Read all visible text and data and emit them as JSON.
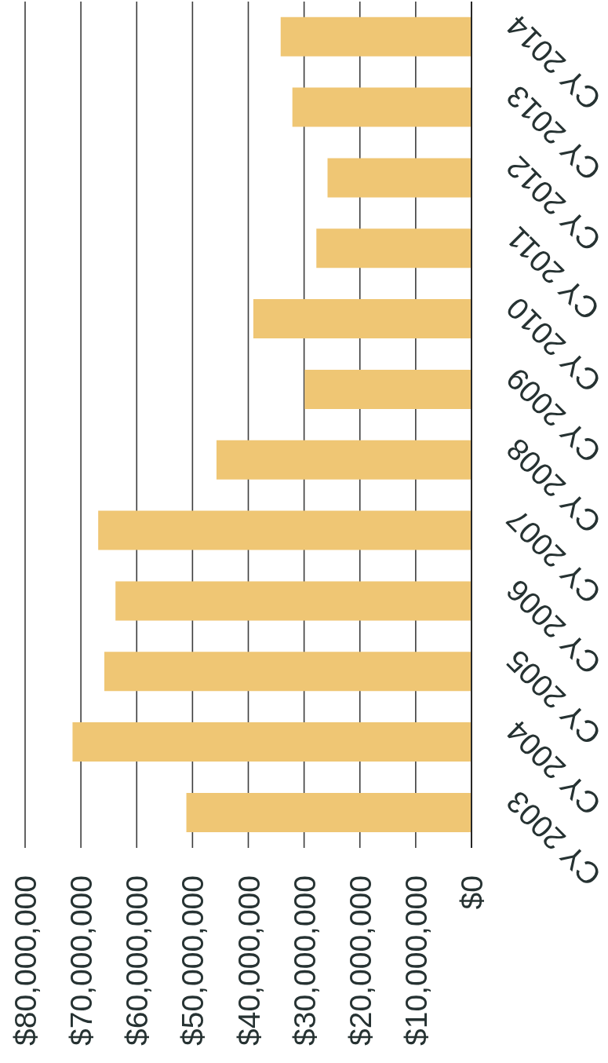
{
  "chart_data": {
    "type": "bar",
    "orientation": "horizontal",
    "categories": [
      "CY 2014",
      "CY 2013",
      "CY 2012",
      "CY 2011",
      "CY 2010",
      "CY 2009",
      "CY 2008",
      "CY 2007",
      "CY 2006",
      "CY 2005",
      "CY 2004",
      "CY 2003"
    ],
    "values": [
      34200000,
      32100000,
      25800000,
      27800000,
      39100000,
      29900000,
      45700000,
      66900000,
      63800000,
      65800000,
      71500000,
      51100000
    ],
    "color": "#efc674",
    "xlim": [
      80000000,
      0
    ],
    "xticks": [
      {
        "value": 80000000,
        "label": "$80,000,000"
      },
      {
        "value": 70000000,
        "label": "$70,000,000"
      },
      {
        "value": 60000000,
        "label": "$60,000,000"
      },
      {
        "value": 50000000,
        "label": "$50,000,000"
      },
      {
        "value": 40000000,
        "label": "$40,000,000"
      },
      {
        "value": 30000000,
        "label": "$30,000,000"
      },
      {
        "value": 20000000,
        "label": "$20,000,000"
      },
      {
        "value": 10000000,
        "label": "$10,000,000"
      },
      {
        "value": 0,
        "label": "$0"
      }
    ],
    "grid": "x"
  }
}
